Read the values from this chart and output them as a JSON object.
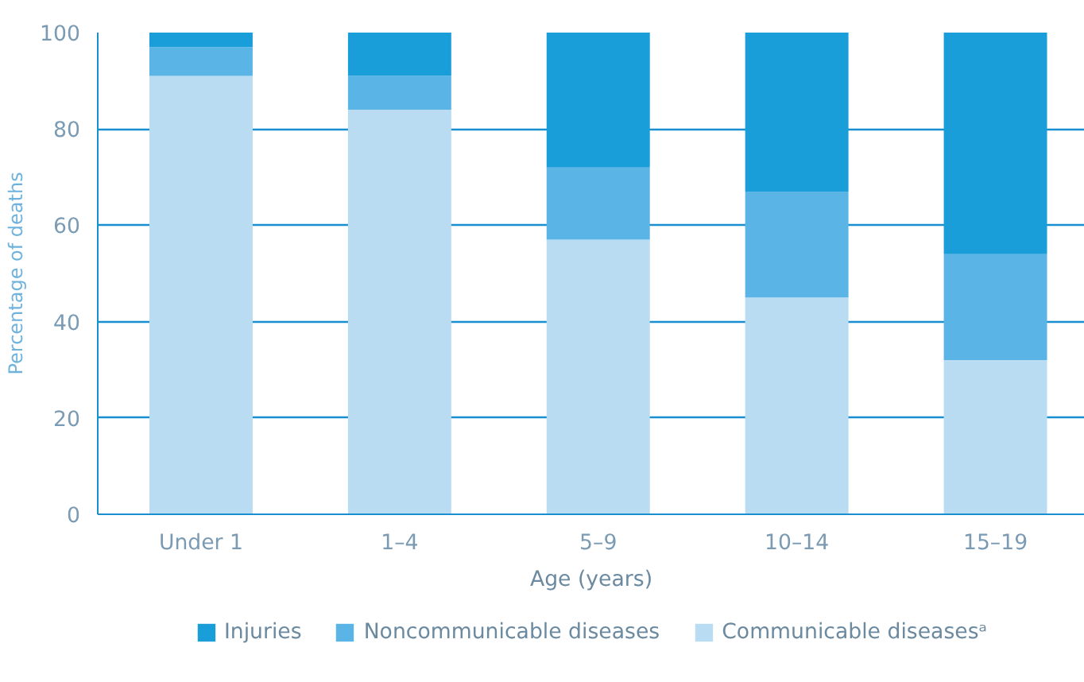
{
  "chart_data": {
    "type": "bar",
    "stacked": true,
    "xlabel": "Age (years)",
    "ylabel": "Percentage of deaths",
    "categories": [
      "Under 1",
      "1–4",
      "5–9",
      "10–14",
      "15–19"
    ],
    "series": [
      {
        "name": "Communicable diseasesᵃ",
        "color": "#b9dcf2",
        "values": [
          91,
          84,
          57,
          45,
          32
        ]
      },
      {
        "name": "Noncommunicable diseases",
        "color": "#5ab4e5",
        "values": [
          6,
          7,
          15,
          22,
          22
        ]
      },
      {
        "name": "Injuries",
        "color": "#1a9ed9",
        "values": [
          3,
          9,
          28,
          33,
          46
        ]
      }
    ],
    "ylim": [
      0,
      100
    ],
    "yticks": [
      0,
      20,
      40,
      60,
      80,
      100
    ],
    "grid": "y",
    "legend": "bottom"
  }
}
